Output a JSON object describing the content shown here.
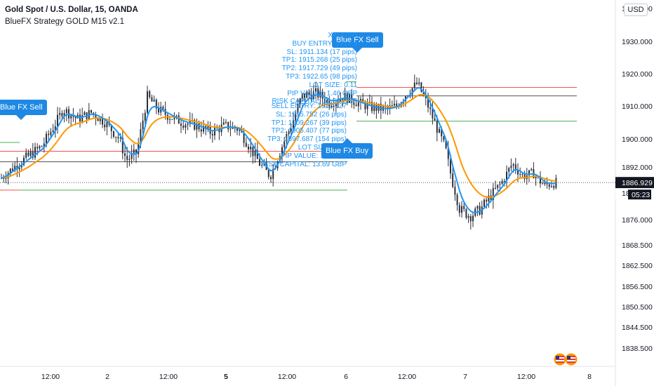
{
  "header": {
    "title": "Gold Spot / U.S. Dollar, 15, OANDA",
    "indicator": "BlueFX Strategy GOLD M15 v2.1",
    "currency_button": "USD"
  },
  "price_scale": {
    "last_price": "1886.929",
    "countdown": "05:23",
    "partial_label": "18"
  },
  "signals": {
    "tags": [
      "Blue FX Sell",
      "Blue FX Sell",
      "Blue FX Buy"
    ],
    "sell_info": [
      "XAUUSD",
      "BUY ENTRY: 1912.8",
      "SL: 1911.134 (17 pips)",
      "TP1: 1915.268 (25 pips)",
      "TP2: 1917.729 (49 pips)",
      "TP3: 1922.65 (98 pips)",
      "LOT SIZE: 0.11",
      "PIP VALUE: 1.46 GBP",
      "RISK CAPITAL: 13.66 GBP"
    ],
    "buy_info": [
      "SELL ENTRY: 1913.127",
      "SL: 1915.752 (26 pips)",
      "TP1: 1909.267 (39 pips)",
      "TP2: 1905.407 (77 pips)",
      "TP3: 1897.687 (154 pips)",
      "LOT SIZE: 0.09",
      "PIP VALUE: 1.2 GBP",
      "RISK CAPITAL: 13.69 GBP"
    ]
  },
  "chart_data": {
    "type": "candlestick",
    "symbol": "XAUUSD",
    "timeframe": "15",
    "y_ticks": [
      1838.5,
      1844.5,
      1850.5,
      1856.5,
      1862.5,
      1868.5,
      1876.0,
      1884.0,
      1892.0,
      1900.0,
      1910.0,
      1920.0,
      1930.0,
      1940.0
    ],
    "y_tick_labels": [
      "1838.500",
      "1844.500",
      "1850.500",
      "1856.500",
      "1862.500",
      "1868.500",
      "1876.000",
      "1884.000",
      "1892.000",
      "1900.000",
      "1910.000",
      "1920.000",
      "1930.000",
      "1940.000"
    ],
    "x_ticks": [
      {
        "label": "12:00",
        "bold": false
      },
      {
        "label": "2",
        "bold": false
      },
      {
        "label": "12:00",
        "bold": false
      },
      {
        "label": "5",
        "bold": true
      },
      {
        "label": "12:00",
        "bold": false
      },
      {
        "label": "6",
        "bold": false
      },
      {
        "label": "12:00",
        "bold": false
      },
      {
        "label": "7",
        "bold": false
      },
      {
        "label": "12:00",
        "bold": false
      },
      {
        "label": "8",
        "bold": false
      }
    ],
    "close_path": [
      [
        0,
        1888.0
      ],
      [
        20,
        1892.0
      ],
      [
        40,
        1895.0
      ],
      [
        60,
        1898.0
      ],
      [
        80,
        1905.0
      ],
      [
        90,
        1909.0
      ],
      [
        110,
        1906.0
      ],
      [
        130,
        1908.0
      ],
      [
        150,
        1905.0
      ],
      [
        170,
        1900.0
      ],
      [
        180,
        1894.0
      ],
      [
        195,
        1896.0
      ],
      [
        210,
        1913.0
      ],
      [
        225,
        1909.0
      ],
      [
        240,
        1907.0
      ],
      [
        260,
        1905.0
      ],
      [
        280,
        1904.0
      ],
      [
        300,
        1902.0
      ],
      [
        320,
        1904.0
      ],
      [
        340,
        1903.0
      ],
      [
        355,
        1898.0
      ],
      [
        370,
        1893.0
      ],
      [
        385,
        1889.0
      ],
      [
        400,
        1897.0
      ],
      [
        415,
        1904.0
      ],
      [
        430,
        1913.0
      ],
      [
        450,
        1914.0
      ],
      [
        470,
        1911.0
      ],
      [
        490,
        1913.0
      ],
      [
        510,
        1911.0
      ],
      [
        530,
        1909.5
      ],
      [
        550,
        1909.0
      ],
      [
        565,
        1910.0
      ],
      [
        580,
        1914.0
      ],
      [
        595,
        1917.0
      ],
      [
        610,
        1910.0
      ],
      [
        625,
        1902.0
      ],
      [
        635,
        1897.0
      ],
      [
        645,
        1887.0
      ],
      [
        655,
        1879.0
      ],
      [
        670,
        1877.0
      ],
      [
        685,
        1879.0
      ],
      [
        700,
        1883.0
      ],
      [
        715,
        1887.0
      ],
      [
        730,
        1893.0
      ],
      [
        745,
        1889.0
      ],
      [
        760,
        1890.0
      ],
      [
        775,
        1886.0
      ],
      [
        795,
        1887.0
      ]
    ],
    "levels": [
      {
        "color": "#ef5350",
        "y": 1896.5,
        "from": 0,
        "to": 495
      },
      {
        "color": "#555555",
        "y": 1893.5,
        "from": 0,
        "to": 495
      },
      {
        "color": "#4caf50",
        "y": 1899.0,
        "from": 0,
        "to": 28
      },
      {
        "color": "#ef5350",
        "y": 1884.5,
        "from": 0,
        "to": 28
      },
      {
        "color": "#4caf50",
        "y": 1884.5,
        "from": 28,
        "to": 495
      },
      {
        "color": "#4caf50",
        "y": 1917.5,
        "from": 493,
        "to": 508
      },
      {
        "color": "#ef5350",
        "y": 1915.75,
        "from": 508,
        "to": 822
      },
      {
        "color": "#555555",
        "y": 1913.127,
        "from": 508,
        "to": 822
      },
      {
        "color": "#4caf50",
        "y": 1905.4,
        "from": 508,
        "to": 822
      }
    ],
    "last_price": 1886.929,
    "colors": {
      "candle": "#2a2e39",
      "fast_ma": "#2196f3",
      "slow_ma": "#ff9800",
      "signal_tag": "#1e88e5",
      "info_text": "#2196f3",
      "price_label": "#131722"
    }
  }
}
